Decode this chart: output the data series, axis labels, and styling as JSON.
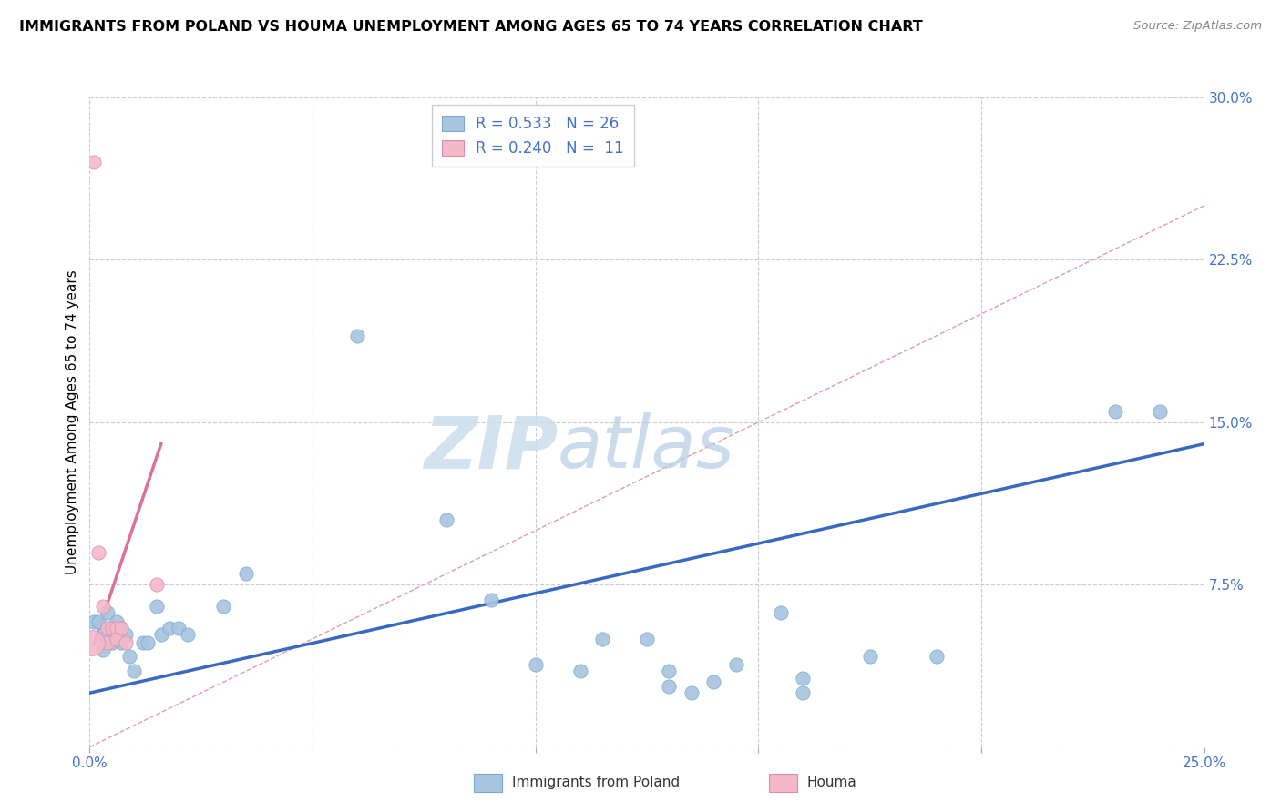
{
  "title": "IMMIGRANTS FROM POLAND VS HOUMA UNEMPLOYMENT AMONG AGES 65 TO 74 YEARS CORRELATION CHART",
  "source": "Source: ZipAtlas.com",
  "ylabel": "Unemployment Among Ages 65 to 74 years",
  "xlim": [
    0.0,
    0.25
  ],
  "ylim": [
    0.0,
    0.3
  ],
  "xticks": [
    0.0,
    0.05,
    0.1,
    0.15,
    0.2,
    0.25
  ],
  "xtick_labels": [
    "0.0%",
    "",
    "",
    "",
    "",
    "25.0%"
  ],
  "yticks_right": [
    0.0,
    0.075,
    0.15,
    0.225,
    0.3
  ],
  "ytick_labels_right": [
    "",
    "7.5%",
    "15.0%",
    "22.5%",
    "30.0%"
  ],
  "color_blue": "#a8c4e0",
  "color_pink": "#f4b8c8",
  "color_blue_line": "#3a6abf",
  "color_pink_line": "#e07090",
  "color_diag": "#d9a0a8",
  "watermark_zip": "ZIP",
  "watermark_atlas": "atlas",
  "blue_points": [
    [
      0.001,
      0.058
    ],
    [
      0.002,
      0.058
    ],
    [
      0.003,
      0.052
    ],
    [
      0.003,
      0.045
    ],
    [
      0.004,
      0.062
    ],
    [
      0.005,
      0.055
    ],
    [
      0.005,
      0.048
    ],
    [
      0.006,
      0.058
    ],
    [
      0.007,
      0.055
    ],
    [
      0.007,
      0.048
    ],
    [
      0.008,
      0.052
    ],
    [
      0.009,
      0.042
    ],
    [
      0.01,
      0.035
    ],
    [
      0.012,
      0.048
    ],
    [
      0.013,
      0.048
    ],
    [
      0.015,
      0.065
    ],
    [
      0.016,
      0.052
    ],
    [
      0.018,
      0.055
    ],
    [
      0.02,
      0.055
    ],
    [
      0.022,
      0.052
    ],
    [
      0.03,
      0.065
    ],
    [
      0.035,
      0.08
    ],
    [
      0.06,
      0.19
    ],
    [
      0.08,
      0.105
    ],
    [
      0.09,
      0.068
    ],
    [
      0.1,
      0.038
    ],
    [
      0.11,
      0.035
    ],
    [
      0.115,
      0.05
    ],
    [
      0.125,
      0.05
    ],
    [
      0.13,
      0.035
    ],
    [
      0.13,
      0.028
    ],
    [
      0.135,
      0.025
    ],
    [
      0.14,
      0.03
    ],
    [
      0.145,
      0.038
    ],
    [
      0.155,
      0.062
    ],
    [
      0.16,
      0.032
    ],
    [
      0.16,
      0.025
    ],
    [
      0.175,
      0.042
    ],
    [
      0.19,
      0.042
    ],
    [
      0.23,
      0.155
    ],
    [
      0.24,
      0.155
    ]
  ],
  "pink_points": [
    [
      0.001,
      0.27
    ],
    [
      0.002,
      0.09
    ],
    [
      0.003,
      0.065
    ],
    [
      0.004,
      0.055
    ],
    [
      0.004,
      0.048
    ],
    [
      0.005,
      0.055
    ],
    [
      0.006,
      0.055
    ],
    [
      0.006,
      0.05
    ],
    [
      0.007,
      0.055
    ],
    [
      0.008,
      0.048
    ],
    [
      0.015,
      0.075
    ]
  ],
  "blue_line_x": [
    0.0,
    0.25
  ],
  "blue_line_y": [
    0.025,
    0.14
  ],
  "pink_line_x": [
    0.001,
    0.016
  ],
  "pink_line_y": [
    0.048,
    0.14
  ],
  "diag_line_x": [
    0.0,
    0.25
  ],
  "diag_line_y": [
    0.0,
    0.25
  ]
}
